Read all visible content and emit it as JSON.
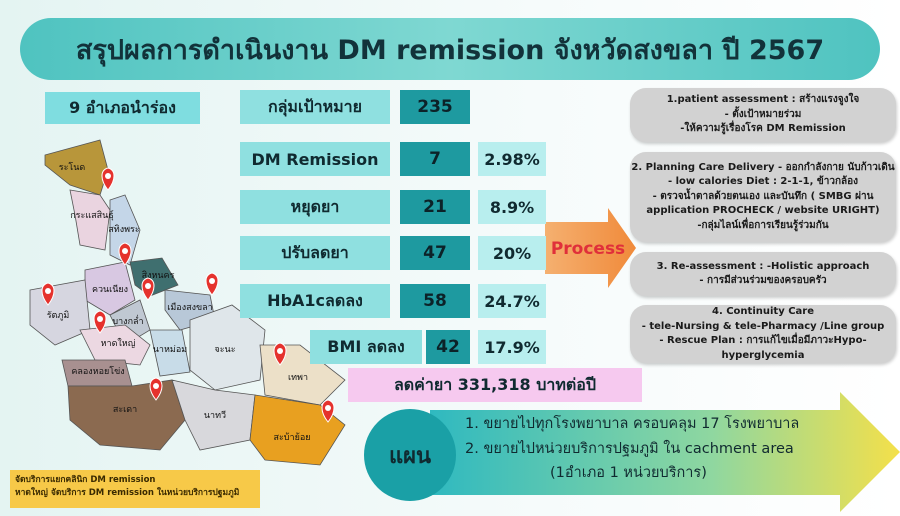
{
  "title": "สรุปผลการดำเนินงาน DM remission จังหวัดสงขลา ปี 2567",
  "pilot_label": "9 อำเภอนำร่อง",
  "metrics": [
    {
      "label": "กลุ่มเป้าหมาย",
      "count": "235"
    },
    {
      "label": "DM Remission",
      "count": "7",
      "percent": "2.98%"
    },
    {
      "label": "หยุดยา",
      "count": "21",
      "percent": "8.9%"
    },
    {
      "label": "ปรับลดยา",
      "count": "47",
      "percent": "20%"
    },
    {
      "label": "HbA1cลดลง",
      "count": "58",
      "percent": "24.7%"
    },
    {
      "label": "BMI ลดลง",
      "count": "42",
      "percent": "17.9%"
    }
  ],
  "savings": "ลดค่ายา 331,318 บาทต่อปี",
  "process_label": "Process",
  "steps": [
    {
      "lines": [
        "1.patient assessment : สร้างแรงจูงใจ",
        "- ตั้งเป้าหมายร่วม",
        "-ให้ความรู้เรื่องโรค DM Remission"
      ]
    },
    {
      "lines": [
        "2. Planning Care Delivery - ออกกำลังกาย นับก้าวเดิน",
        "- low calories Diet : 2-1-1, ข้าวกล้อง",
        "- ตรวจน้ำตาลด้วยตนเอง และบันทึก ( SMBG ผ่าน",
        "application PROCHECK / website URIGHT)",
        "-กลุ่มไลน์เพื่อการเรียนรู้ร่วมกัน"
      ]
    },
    {
      "lines": [
        "3. Re-assessment : -Holistic approach",
        "- การมีส่วนร่วมของครอบครัว"
      ]
    },
    {
      "lines": [
        "4. Continuity Care",
        "- tele-Nursing & tele-Pharmacy /Line group",
        "- Rescue Plan : การแก้ไขเมื่อมีภาวะHypo-hyperglycemia"
      ]
    }
  ],
  "plan": {
    "label": "แผน",
    "lines": [
      "1. ขยายไปทุกโรงพยาบาล ครอบคลุม 17 โรงพยาบาล",
      "2. ขยายไปหน่วยบริการปฐมภูมิ ใน cachment area",
      "(1อำเภอ 1 หน่วยบริการ)"
    ]
  },
  "notes": [
    "จัดบริการแยกคลินิก DM remission",
    "หาดใหญ่ จัดบริการ DM remission ในหน่วยบริการปฐมภูมิ"
  ],
  "map": {
    "districts": [
      "ระโนด",
      "กระแสสินธุ์",
      "สทิงพระ",
      "สิงหนคร",
      "ควนเนียง",
      "รัตภูมิ",
      "บางกล่ำ",
      "หาดใหญ่",
      "เมืองสงขลา",
      "นาหม่อม",
      "คลองหอยโข่ง",
      "จะนะ",
      "เทพา",
      "สะเดา",
      "นาทวี",
      "สะบ้าย้อย"
    ]
  }
}
